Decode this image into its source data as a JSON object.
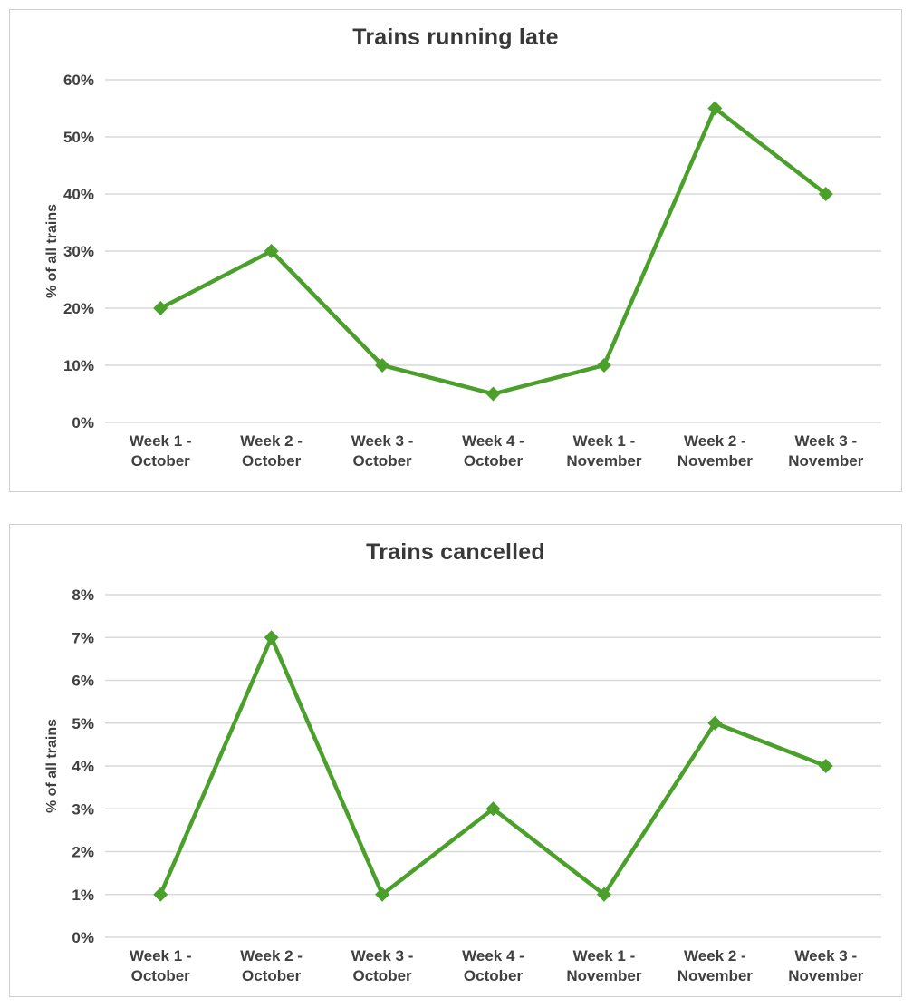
{
  "style": {
    "line_color": "#4aa02a",
    "marker_color": "#4aa02a",
    "grid_color": "#d9d9d9",
    "text_color": "#404040",
    "title_color": "#383838",
    "panel_border_color": "#d2cfcf",
    "background": "#ffffff"
  },
  "chart_data": [
    {
      "type": "line",
      "title": "Trains running late",
      "ylabel": "% of all trains",
      "xlabel": "",
      "categories": [
        "Week 1 - October",
        "Week 2 - October",
        "Week 3 - October",
        "Week 4 - October",
        "Week 1 - November",
        "Week 2 - November",
        "Week 3 - November"
      ],
      "values": [
        20,
        30,
        10,
        5,
        10,
        55,
        40
      ],
      "ylim": [
        0,
        60
      ],
      "ytick_step": 10,
      "ytick_suffix": "%",
      "grid": true,
      "legend": false,
      "marker": "diamond"
    },
    {
      "type": "line",
      "title": "Trains cancelled",
      "ylabel": "% of all trains",
      "xlabel": "",
      "categories": [
        "Week 1 - October",
        "Week 2 - October",
        "Week 3 - October",
        "Week 4 - October",
        "Week 1 - November",
        "Week 2 - November",
        "Week 3 - November"
      ],
      "values": [
        1,
        7,
        1,
        3,
        1,
        5,
        4
      ],
      "ylim": [
        0,
        8
      ],
      "ytick_step": 1,
      "ytick_suffix": "%",
      "grid": true,
      "legend": false,
      "marker": "diamond"
    }
  ]
}
